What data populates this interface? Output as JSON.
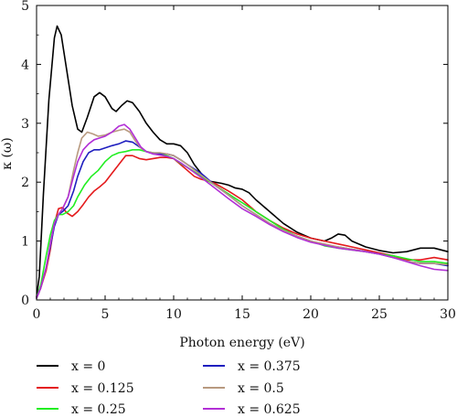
{
  "chart_data": {
    "type": "line",
    "xlabel": "Photon energy (eV)",
    "ylabel": "κ (ω)",
    "xlim": [
      0,
      30
    ],
    "ylim": [
      0,
      5
    ],
    "xticks": [
      "0",
      "5",
      "10",
      "15",
      "20",
      "25",
      "30"
    ],
    "yticks": [
      "0",
      "1",
      "2",
      "3",
      "4",
      "5"
    ],
    "grid": false,
    "legend_position": "bottom",
    "series": [
      {
        "name": "x = 0",
        "color": "#000000",
        "points": [
          [
            0,
            0.05
          ],
          [
            0.2,
            0.4
          ],
          [
            0.5,
            1.8
          ],
          [
            0.9,
            3.4
          ],
          [
            1.3,
            4.45
          ],
          [
            1.5,
            4.65
          ],
          [
            1.8,
            4.5
          ],
          [
            2.2,
            3.9
          ],
          [
            2.6,
            3.3
          ],
          [
            3.0,
            2.9
          ],
          [
            3.3,
            2.85
          ],
          [
            3.7,
            3.1
          ],
          [
            4.2,
            3.45
          ],
          [
            4.6,
            3.52
          ],
          [
            5.0,
            3.45
          ],
          [
            5.5,
            3.25
          ],
          [
            5.8,
            3.2
          ],
          [
            6.2,
            3.3
          ],
          [
            6.6,
            3.38
          ],
          [
            7.0,
            3.35
          ],
          [
            7.5,
            3.2
          ],
          [
            8.0,
            3.0
          ],
          [
            8.5,
            2.85
          ],
          [
            9.0,
            2.72
          ],
          [
            9.5,
            2.65
          ],
          [
            10.0,
            2.65
          ],
          [
            10.5,
            2.62
          ],
          [
            11.0,
            2.5
          ],
          [
            11.5,
            2.3
          ],
          [
            12.0,
            2.15
          ],
          [
            12.5,
            2.02
          ],
          [
            13.0,
            2.0
          ],
          [
            13.5,
            1.98
          ],
          [
            14.0,
            1.95
          ],
          [
            14.5,
            1.9
          ],
          [
            15.0,
            1.88
          ],
          [
            15.5,
            1.82
          ],
          [
            16.0,
            1.7
          ],
          [
            17.0,
            1.5
          ],
          [
            18.0,
            1.3
          ],
          [
            19.0,
            1.15
          ],
          [
            20.0,
            1.05
          ],
          [
            21.0,
            1.0
          ],
          [
            21.5,
            1.05
          ],
          [
            22.0,
            1.12
          ],
          [
            22.5,
            1.1
          ],
          [
            23.0,
            1.0
          ],
          [
            24.0,
            0.9
          ],
          [
            25.0,
            0.84
          ],
          [
            26.0,
            0.8
          ],
          [
            27.0,
            0.82
          ],
          [
            28.0,
            0.88
          ],
          [
            29.0,
            0.88
          ],
          [
            30.0,
            0.82
          ]
        ]
      },
      {
        "name": "x = 0.125",
        "color": "#e41a1c",
        "points": [
          [
            0,
            0.03
          ],
          [
            0.3,
            0.2
          ],
          [
            0.7,
            0.5
          ],
          [
            1.0,
            0.85
          ],
          [
            1.3,
            1.3
          ],
          [
            1.6,
            1.55
          ],
          [
            1.9,
            1.57
          ],
          [
            2.2,
            1.48
          ],
          [
            2.6,
            1.42
          ],
          [
            3.0,
            1.5
          ],
          [
            3.4,
            1.62
          ],
          [
            3.8,
            1.75
          ],
          [
            4.2,
            1.85
          ],
          [
            4.6,
            1.92
          ],
          [
            5.0,
            2.0
          ],
          [
            5.5,
            2.15
          ],
          [
            6.0,
            2.3
          ],
          [
            6.5,
            2.45
          ],
          [
            7.0,
            2.45
          ],
          [
            7.5,
            2.4
          ],
          [
            8.0,
            2.38
          ],
          [
            8.5,
            2.4
          ],
          [
            9.0,
            2.42
          ],
          [
            9.5,
            2.42
          ],
          [
            10.0,
            2.4
          ],
          [
            10.5,
            2.3
          ],
          [
            11.0,
            2.2
          ],
          [
            11.5,
            2.1
          ],
          [
            12.0,
            2.05
          ],
          [
            12.5,
            2.02
          ],
          [
            13.0,
            1.98
          ],
          [
            14.0,
            1.85
          ],
          [
            15.0,
            1.7
          ],
          [
            16.0,
            1.5
          ],
          [
            17.0,
            1.35
          ],
          [
            18.0,
            1.22
          ],
          [
            19.0,
            1.12
          ],
          [
            20.0,
            1.05
          ],
          [
            21.0,
            1.0
          ],
          [
            22.0,
            0.95
          ],
          [
            23.0,
            0.9
          ],
          [
            24.0,
            0.85
          ],
          [
            25.0,
            0.8
          ],
          [
            26.0,
            0.75
          ],
          [
            27.0,
            0.68
          ],
          [
            28.0,
            0.68
          ],
          [
            29.0,
            0.72
          ],
          [
            30.0,
            0.68
          ]
        ]
      },
      {
        "name": "x = 0.25",
        "color": "#22ee22",
        "points": [
          [
            0,
            0.03
          ],
          [
            0.3,
            0.25
          ],
          [
            0.7,
            0.75
          ],
          [
            1.0,
            1.1
          ],
          [
            1.3,
            1.35
          ],
          [
            1.6,
            1.45
          ],
          [
            1.9,
            1.45
          ],
          [
            2.3,
            1.5
          ],
          [
            2.7,
            1.6
          ],
          [
            3.0,
            1.75
          ],
          [
            3.5,
            1.95
          ],
          [
            4.0,
            2.1
          ],
          [
            4.5,
            2.2
          ],
          [
            5.0,
            2.35
          ],
          [
            5.5,
            2.45
          ],
          [
            6.0,
            2.5
          ],
          [
            6.5,
            2.52
          ],
          [
            7.0,
            2.55
          ],
          [
            7.5,
            2.55
          ],
          [
            8.0,
            2.52
          ],
          [
            8.5,
            2.5
          ],
          [
            9.0,
            2.48
          ],
          [
            9.5,
            2.45
          ],
          [
            10.0,
            2.4
          ],
          [
            10.5,
            2.32
          ],
          [
            11.0,
            2.25
          ],
          [
            12.0,
            2.1
          ],
          [
            13.0,
            1.95
          ],
          [
            14.0,
            1.8
          ],
          [
            15.0,
            1.65
          ],
          [
            16.0,
            1.5
          ],
          [
            17.0,
            1.35
          ],
          [
            18.0,
            1.2
          ],
          [
            19.0,
            1.08
          ],
          [
            20.0,
            1.0
          ],
          [
            21.0,
            0.92
          ],
          [
            22.0,
            0.88
          ],
          [
            23.0,
            0.85
          ],
          [
            24.0,
            0.82
          ],
          [
            25.0,
            0.78
          ],
          [
            26.0,
            0.75
          ],
          [
            27.0,
            0.7
          ],
          [
            28.0,
            0.65
          ],
          [
            29.0,
            0.65
          ],
          [
            30.0,
            0.62
          ]
        ]
      },
      {
        "name": "x = 0.375",
        "color": "#1f1fbf",
        "points": [
          [
            0,
            0.03
          ],
          [
            0.3,
            0.2
          ],
          [
            0.7,
            0.55
          ],
          [
            1.0,
            0.9
          ],
          [
            1.3,
            1.25
          ],
          [
            1.6,
            1.45
          ],
          [
            1.9,
            1.5
          ],
          [
            2.3,
            1.6
          ],
          [
            2.7,
            1.85
          ],
          [
            3.0,
            2.1
          ],
          [
            3.4,
            2.35
          ],
          [
            3.8,
            2.5
          ],
          [
            4.2,
            2.55
          ],
          [
            4.6,
            2.55
          ],
          [
            5.0,
            2.58
          ],
          [
            5.5,
            2.62
          ],
          [
            6.0,
            2.65
          ],
          [
            6.5,
            2.7
          ],
          [
            7.0,
            2.68
          ],
          [
            7.5,
            2.6
          ],
          [
            8.0,
            2.52
          ],
          [
            8.5,
            2.48
          ],
          [
            9.0,
            2.48
          ],
          [
            9.5,
            2.48
          ],
          [
            10.0,
            2.45
          ],
          [
            10.5,
            2.38
          ],
          [
            11.0,
            2.3
          ],
          [
            12.0,
            2.15
          ],
          [
            13.0,
            1.95
          ],
          [
            14.0,
            1.78
          ],
          [
            15.0,
            1.6
          ],
          [
            16.0,
            1.45
          ],
          [
            17.0,
            1.3
          ],
          [
            18.0,
            1.18
          ],
          [
            19.0,
            1.08
          ],
          [
            20.0,
            1.0
          ],
          [
            21.0,
            0.93
          ],
          [
            22.0,
            0.9
          ],
          [
            23.0,
            0.86
          ],
          [
            24.0,
            0.82
          ],
          [
            25.0,
            0.78
          ],
          [
            26.0,
            0.72
          ],
          [
            27.0,
            0.66
          ],
          [
            28.0,
            0.62
          ],
          [
            29.0,
            0.62
          ],
          [
            30.0,
            0.58
          ]
        ]
      },
      {
        "name": "x = 0.5",
        "color": "#b89a80",
        "points": [
          [
            0,
            0.03
          ],
          [
            0.3,
            0.2
          ],
          [
            0.7,
            0.55
          ],
          [
            1.0,
            0.95
          ],
          [
            1.3,
            1.3
          ],
          [
            1.6,
            1.45
          ],
          [
            1.9,
            1.55
          ],
          [
            2.3,
            1.75
          ],
          [
            2.7,
            2.2
          ],
          [
            3.0,
            2.5
          ],
          [
            3.3,
            2.75
          ],
          [
            3.7,
            2.85
          ],
          [
            4.1,
            2.82
          ],
          [
            4.5,
            2.78
          ],
          [
            5.0,
            2.8
          ],
          [
            5.5,
            2.85
          ],
          [
            6.0,
            2.88
          ],
          [
            6.4,
            2.9
          ],
          [
            6.8,
            2.85
          ],
          [
            7.2,
            2.7
          ],
          [
            7.6,
            2.58
          ],
          [
            8.0,
            2.52
          ],
          [
            8.5,
            2.5
          ],
          [
            9.0,
            2.5
          ],
          [
            9.5,
            2.48
          ],
          [
            10.0,
            2.45
          ],
          [
            10.5,
            2.38
          ],
          [
            11.0,
            2.3
          ],
          [
            12.0,
            2.12
          ],
          [
            13.0,
            1.95
          ],
          [
            14.0,
            1.78
          ],
          [
            15.0,
            1.6
          ],
          [
            16.0,
            1.45
          ],
          [
            17.0,
            1.3
          ],
          [
            18.0,
            1.18
          ],
          [
            19.0,
            1.08
          ],
          [
            20.0,
            1.0
          ],
          [
            21.0,
            0.95
          ],
          [
            22.0,
            0.9
          ],
          [
            23.0,
            0.86
          ],
          [
            24.0,
            0.82
          ],
          [
            25.0,
            0.78
          ],
          [
            26.0,
            0.72
          ],
          [
            27.0,
            0.66
          ],
          [
            28.0,
            0.62
          ],
          [
            29.0,
            0.62
          ],
          [
            30.0,
            0.6
          ]
        ]
      },
      {
        "name": "x = 0.625",
        "color": "#b22fd6",
        "points": [
          [
            0,
            0.03
          ],
          [
            0.3,
            0.2
          ],
          [
            0.7,
            0.55
          ],
          [
            1.0,
            0.95
          ],
          [
            1.3,
            1.3
          ],
          [
            1.6,
            1.45
          ],
          [
            1.9,
            1.55
          ],
          [
            2.3,
            1.75
          ],
          [
            2.7,
            2.1
          ],
          [
            3.0,
            2.35
          ],
          [
            3.4,
            2.55
          ],
          [
            3.8,
            2.65
          ],
          [
            4.2,
            2.72
          ],
          [
            4.6,
            2.75
          ],
          [
            5.0,
            2.78
          ],
          [
            5.5,
            2.85
          ],
          [
            6.0,
            2.95
          ],
          [
            6.4,
            2.98
          ],
          [
            6.8,
            2.9
          ],
          [
            7.2,
            2.75
          ],
          [
            7.6,
            2.6
          ],
          [
            8.0,
            2.52
          ],
          [
            8.5,
            2.48
          ],
          [
            9.0,
            2.46
          ],
          [
            9.5,
            2.44
          ],
          [
            10.0,
            2.4
          ],
          [
            10.5,
            2.33
          ],
          [
            11.0,
            2.25
          ],
          [
            12.0,
            2.08
          ],
          [
            13.0,
            1.9
          ],
          [
            14.0,
            1.72
          ],
          [
            15.0,
            1.55
          ],
          [
            16.0,
            1.42
          ],
          [
            17.0,
            1.28
          ],
          [
            18.0,
            1.16
          ],
          [
            19.0,
            1.06
          ],
          [
            20.0,
            0.98
          ],
          [
            21.0,
            0.93
          ],
          [
            22.0,
            0.88
          ],
          [
            23.0,
            0.85
          ],
          [
            24.0,
            0.82
          ],
          [
            25.0,
            0.78
          ],
          [
            26.0,
            0.72
          ],
          [
            27.0,
            0.65
          ],
          [
            28.0,
            0.58
          ],
          [
            29.0,
            0.52
          ],
          [
            30.0,
            0.5
          ]
        ]
      }
    ]
  }
}
